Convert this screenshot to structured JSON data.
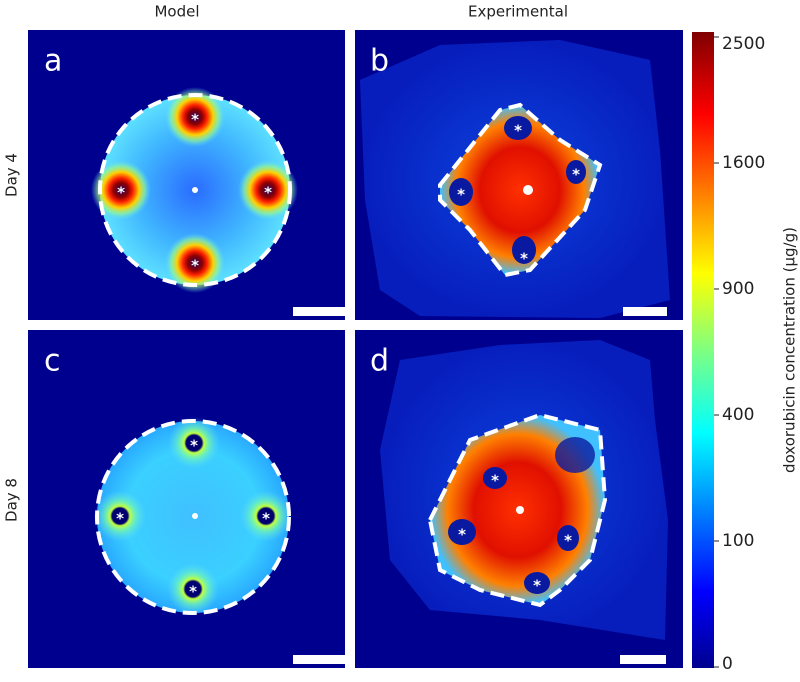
{
  "columns": [
    "Model",
    "Experimental"
  ],
  "rows": [
    "Day 4",
    "Day 8"
  ],
  "panels": [
    "a",
    "b",
    "c",
    "d"
  ],
  "marker": "*",
  "colorbar": {
    "label": "doxorubicin concentration (µg/g)",
    "scale": "sqrt",
    "lim": [
      0,
      2500
    ],
    "ticks": [
      0,
      100,
      400,
      900,
      1600,
      2500
    ]
  }
}
